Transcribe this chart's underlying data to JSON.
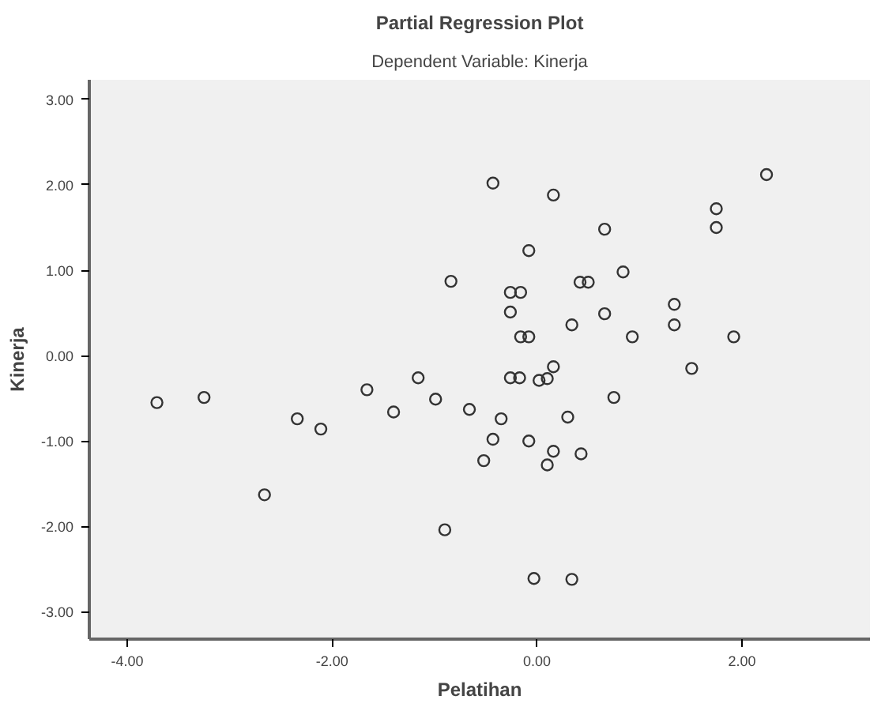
{
  "chart_data": {
    "type": "scatter",
    "title": "Partial Regression Plot",
    "subtitle": "Dependent Variable: Kinerja",
    "xlabel": "Pelatihan",
    "ylabel": "Kinerja",
    "x": [
      -3.71,
      -3.25,
      -2.34,
      -2.11,
      -2.66,
      -1.66,
      -1.4,
      -1.16,
      -0.99,
      -0.43,
      0.16,
      2.24,
      1.75,
      1.75,
      0.66,
      -0.08,
      0.84,
      -0.84,
      0.42,
      0.5,
      -0.26,
      -0.16,
      1.34,
      -0.26,
      0.66,
      0.34,
      1.34,
      -0.16,
      -0.08,
      0.93,
      1.92,
      1.51,
      0.16,
      -0.26,
      -0.17,
      0.02,
      0.1,
      0.75,
      -0.66,
      -0.35,
      0.3,
      -0.43,
      -0.08,
      0.16,
      0.43,
      -0.52,
      0.1,
      -0.9,
      -0.03,
      0.34
    ],
    "values": [
      -0.55,
      -0.49,
      -0.74,
      -0.86,
      -1.63,
      -0.4,
      -0.66,
      -0.26,
      -0.51,
      2.02,
      1.88,
      2.12,
      1.72,
      1.5,
      1.48,
      1.23,
      0.98,
      0.87,
      0.86,
      0.86,
      0.74,
      0.74,
      0.6,
      0.51,
      0.49,
      0.36,
      0.36,
      0.22,
      0.22,
      0.22,
      0.22,
      -0.15,
      -0.13,
      -0.26,
      -0.26,
      -0.29,
      -0.27,
      -0.49,
      -0.63,
      -0.74,
      -0.72,
      -0.98,
      -1.0,
      -1.12,
      -1.15,
      -1.23,
      -1.28,
      -2.04,
      -2.61,
      -2.62
    ],
    "color": "#333333",
    "marker": "circle",
    "xlim": [
      -4.37,
      3.25
    ],
    "ylim": [
      -3.32,
      3.23
    ],
    "xticks": [
      {
        "value": -4,
        "label": "-4.00"
      },
      {
        "value": -2,
        "label": "-2.00"
      },
      {
        "value": 0,
        "label": "0.00"
      },
      {
        "value": 2,
        "label": "2.00"
      }
    ],
    "yticks": [
      {
        "value": -3,
        "label": "-3.00"
      },
      {
        "value": -2,
        "label": "-2.00"
      },
      {
        "value": -1,
        "label": "-1.00"
      },
      {
        "value": 0,
        "label": "0.00"
      },
      {
        "value": 1,
        "label": "1.00"
      },
      {
        "value": 2,
        "label": "2.00"
      },
      {
        "value": 3,
        "label": "3.00"
      }
    ],
    "grid": false
  }
}
